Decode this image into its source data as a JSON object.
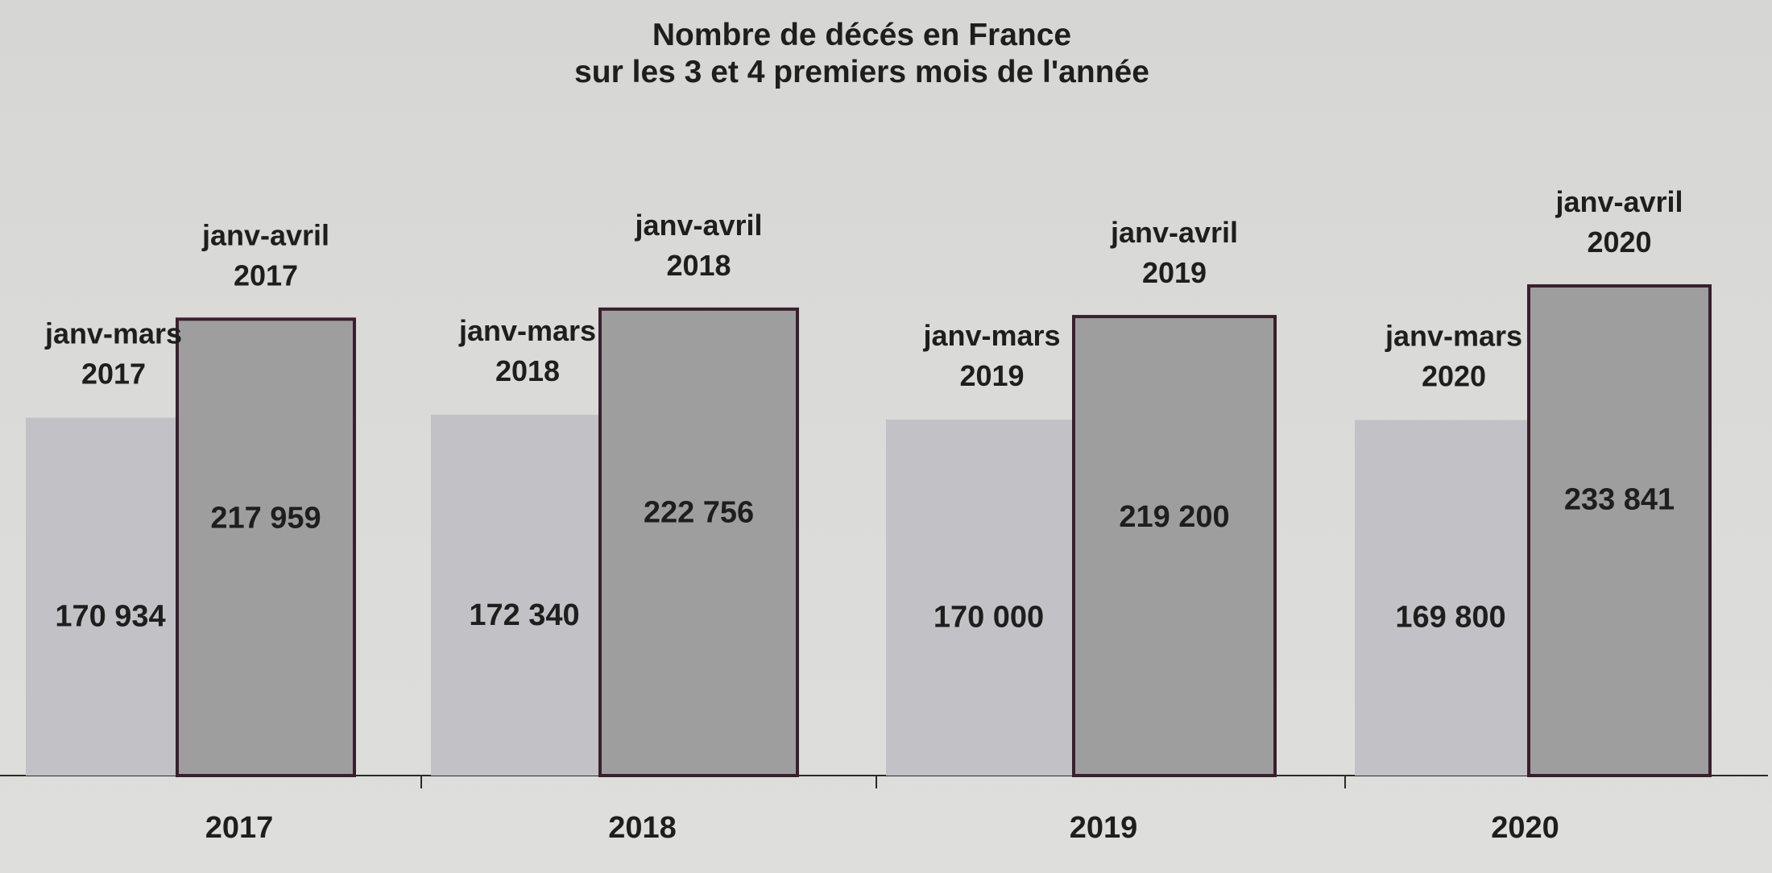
{
  "chart_data": {
    "type": "bar",
    "title": "Nombre de décés en France",
    "subtitle": "sur les 3 et  4 premiers mois de l'année",
    "categories": [
      "2017",
      "2018",
      "2019",
      "2020"
    ],
    "series": [
      {
        "name": "janv-mars",
        "values": [
          170934,
          172340,
          170000,
          169800
        ],
        "value_labels": [
          "170 934",
          "172 340",
          "170 000",
          "169 800"
        ],
        "bar_labels": [
          [
            "janv-mars",
            "2017"
          ],
          [
            "janv-mars",
            "2018"
          ],
          [
            "janv-mars",
            "2019"
          ],
          [
            "janv-mars",
            "2020"
          ]
        ],
        "color": "#c2c2c6"
      },
      {
        "name": "janv-avril",
        "values": [
          217959,
          222756,
          219200,
          233841
        ],
        "value_labels": [
          "217 959",
          "222 756",
          "219 200",
          "233 841"
        ],
        "bar_labels": [
          [
            "janv-avril",
            "2017"
          ],
          [
            "janv-avril",
            "2018"
          ],
          [
            "janv-avril",
            "2019"
          ],
          [
            "janv-avril",
            "2020"
          ]
        ],
        "color": "#9e9e9e",
        "outline": "#3a1f2c"
      }
    ],
    "ylim": [
      0,
      240000
    ],
    "grid": false,
    "legend": "none"
  }
}
